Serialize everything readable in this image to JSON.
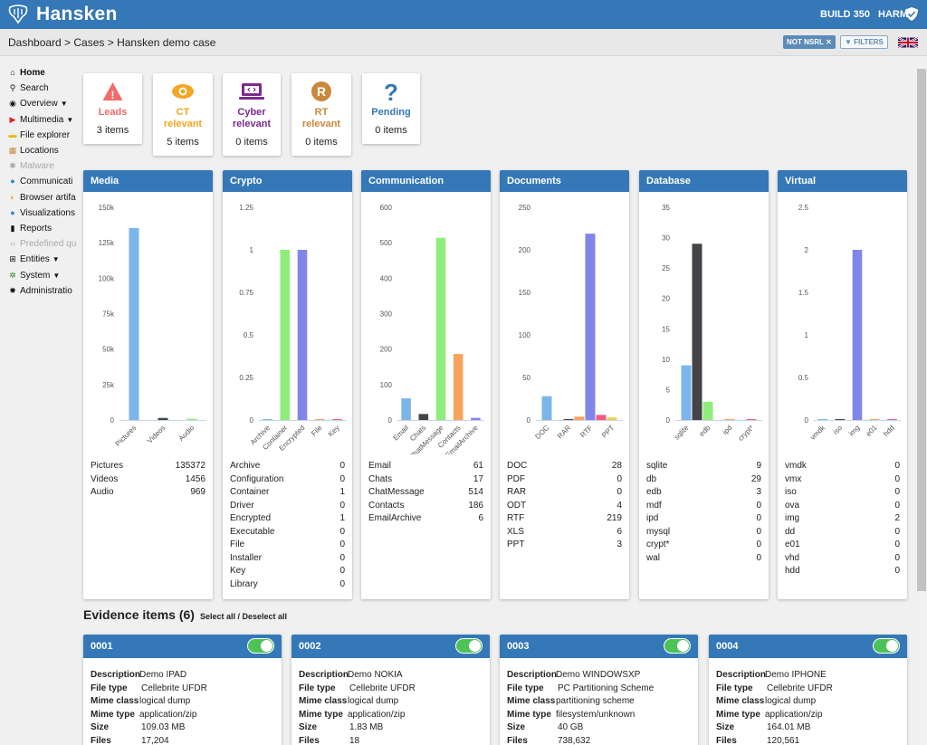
{
  "app": {
    "title": "Hansken",
    "build": "BUILD 350",
    "user": "HARM"
  },
  "breadcrumb": "Dashboard > Cases > Hansken demo case",
  "filter_chip": "NOT NSRL",
  "filters_label": "FILTERS",
  "sidebar": [
    {
      "label": "Home",
      "icon": "home-icon",
      "bold": true,
      "dim": false,
      "chevron": false
    },
    {
      "label": "Search",
      "icon": "search-icon",
      "bold": false,
      "dim": false,
      "chevron": false
    },
    {
      "label": "Overview",
      "icon": "eye-icon",
      "bold": false,
      "dim": false,
      "chevron": true
    },
    {
      "label": "Multimedia",
      "icon": "youtube-icon",
      "bold": false,
      "dim": false,
      "chevron": true
    },
    {
      "label": "File explorer",
      "icon": "folder-icon",
      "bold": false,
      "dim": false,
      "chevron": false
    },
    {
      "label": "Locations",
      "icon": "map-icon",
      "bold": false,
      "dim": false,
      "chevron": false
    },
    {
      "label": "Malware",
      "icon": "bug-icon",
      "bold": false,
      "dim": true,
      "chevron": false
    },
    {
      "label": "Communicati",
      "icon": "globe-icon",
      "bold": false,
      "dim": false,
      "chevron": false
    },
    {
      "label": "Browser artifa",
      "icon": "browser-icon",
      "bold": false,
      "dim": false,
      "chevron": false
    },
    {
      "label": "Visualizations",
      "icon": "globe-icon",
      "bold": false,
      "dim": false,
      "chevron": false
    },
    {
      "label": "Reports",
      "icon": "file-icon",
      "bold": false,
      "dim": false,
      "chevron": false
    },
    {
      "label": "Predefined qu",
      "icon": "code-icon",
      "bold": false,
      "dim": true,
      "chevron": false
    },
    {
      "label": "Entities",
      "icon": "sitemap-icon",
      "bold": false,
      "dim": false,
      "chevron": true
    },
    {
      "label": "System",
      "icon": "cogs-icon",
      "bold": false,
      "dim": false,
      "chevron": true
    },
    {
      "label": "Administratio",
      "icon": "cog-icon",
      "bold": false,
      "dim": false,
      "chevron": false
    }
  ],
  "cards": [
    {
      "title": [
        "Leads"
      ],
      "count": "3 items",
      "color": "#f26b6b",
      "icon": "warning-icon"
    },
    {
      "title": [
        "CT",
        "relevant"
      ],
      "count": "5 items",
      "color": "#f5a623",
      "icon": "eye-icon"
    },
    {
      "title": [
        "Cyber",
        "relevant"
      ],
      "count": "0 items",
      "color": "#7b2a8f",
      "icon": "laptop-code-icon"
    },
    {
      "title": [
        "RT",
        "relevant"
      ],
      "count": "0 items",
      "color": "#c8893a",
      "icon": "r-circle-icon"
    },
    {
      "title": [
        "Pending"
      ],
      "count": "0 items",
      "color": "#3478b7",
      "icon": "question-icon"
    }
  ],
  "chart_data": [
    {
      "type": "bar",
      "title": "Media",
      "categories": [
        "Pictures",
        "Videos",
        "Audio"
      ],
      "values": [
        135372,
        1456,
        969
      ],
      "ylim": [
        0,
        150000
      ],
      "yticks": [
        "150k",
        "125k",
        "100k",
        "75k",
        "50k",
        "25k",
        "0"
      ],
      "colors": [
        "#7cb5ec",
        "#434348",
        "#90ed7d"
      ],
      "stats": [
        [
          "Pictures",
          "135372"
        ],
        [
          "Videos",
          "1456"
        ],
        [
          "Audio",
          "969"
        ]
      ]
    },
    {
      "type": "bar",
      "title": "Crypto",
      "categories": [
        "Archive",
        "Container",
        "Encrypted",
        "File",
        "Key"
      ],
      "values": [
        0,
        1,
        1,
        0,
        0
      ],
      "ylim": [
        0,
        1.25
      ],
      "yticks": [
        "1.25",
        "1",
        "0.75",
        "0.5",
        "0.25",
        "0"
      ],
      "colors": [
        "#7cb5ec",
        "#90ed7d",
        "#8085e9",
        "#f7a35c",
        "#f15c80"
      ],
      "stats": [
        [
          "Archive",
          "0"
        ],
        [
          "Configuration",
          "0"
        ],
        [
          "Container",
          "1"
        ],
        [
          "Driver",
          "0"
        ],
        [
          "Encrypted",
          "1"
        ],
        [
          "Executable",
          "0"
        ],
        [
          "File",
          "0"
        ],
        [
          "Installer",
          "0"
        ],
        [
          "Key",
          "0"
        ],
        [
          "Library",
          "0"
        ]
      ]
    },
    {
      "type": "bar",
      "title": "Communication",
      "categories": [
        "Email",
        "Chats",
        "ChatMessage",
        "Contacts",
        "EmailArchive"
      ],
      "values": [
        61,
        17,
        514,
        186,
        6
      ],
      "ylim": [
        0,
        600
      ],
      "yticks": [
        "600",
        "500",
        "400",
        "300",
        "200",
        "100",
        "0"
      ],
      "colors": [
        "#7cb5ec",
        "#434348",
        "#90ed7d",
        "#f7a35c",
        "#8085e9"
      ],
      "stats": [
        [
          "Email",
          "61"
        ],
        [
          "Chats",
          "17"
        ],
        [
          "ChatMessage",
          "514"
        ],
        [
          "Contacts",
          "186"
        ],
        [
          "EmailArchive",
          "6"
        ]
      ]
    },
    {
      "type": "bar",
      "title": "Documents",
      "categories": [
        "DOC",
        "RAR",
        "RTF",
        "PPT"
      ],
      "values": [
        28,
        0,
        219,
        3
      ],
      "ylim": [
        0,
        250
      ],
      "yticks": [
        "250",
        "200",
        "150",
        "100",
        "50",
        "0"
      ],
      "colors": [
        "#7cb5ec",
        "#434348",
        "#8085e9",
        "#e4d354"
      ],
      "extra_bars": [
        {
          "slot": 1.5,
          "value": 4,
          "color": "#f7a35c"
        },
        {
          "slot": 2.5,
          "value": 6,
          "color": "#f15c80"
        }
      ],
      "stats": [
        [
          "DOC",
          "28"
        ],
        [
          "PDF",
          "0"
        ],
        [
          "RAR",
          "0"
        ],
        [
          "ODT",
          "4"
        ],
        [
          "RTF",
          "219"
        ],
        [
          "XLS",
          "6"
        ],
        [
          "PPT",
          "3"
        ]
      ]
    },
    {
      "type": "bar",
      "title": "Database",
      "categories": [
        "sqlite",
        "edb",
        "ipd",
        "crypt*"
      ],
      "values": [
        9,
        3,
        0,
        0
      ],
      "ylim": [
        0,
        35
      ],
      "yticks": [
        "35",
        "30",
        "25",
        "20",
        "15",
        "10",
        "5",
        "0"
      ],
      "colors": [
        "#7cb5ec",
        "#90ed7d",
        "#f7a35c",
        "#f15c80"
      ],
      "extra_bars": [
        {
          "slot": 0.5,
          "value": 29,
          "color": "#434348"
        }
      ],
      "stats": [
        [
          "sqlite",
          "9"
        ],
        [
          "db",
          "29"
        ],
        [
          "edb",
          "3"
        ],
        [
          "mdf",
          "0"
        ],
        [
          "ipd",
          "0"
        ],
        [
          "mysql",
          "0"
        ],
        [
          "crypt*",
          "0"
        ],
        [
          "wal",
          "0"
        ]
      ]
    },
    {
      "type": "bar",
      "title": "Virtual",
      "categories": [
        "vmdk",
        "iso",
        "img",
        "e01",
        "hdd"
      ],
      "values": [
        0,
        0,
        2,
        0,
        0
      ],
      "ylim": [
        0,
        2.5
      ],
      "yticks": [
        "2.5",
        "2",
        "1.5",
        "1",
        "0.5",
        "0"
      ],
      "colors": [
        "#7cb5ec",
        "#434348",
        "#8085e9",
        "#f7a35c",
        "#f15c80"
      ],
      "stats": [
        [
          "vmdk",
          "0"
        ],
        [
          "vmx",
          "0"
        ],
        [
          "iso",
          "0"
        ],
        [
          "ova",
          "0"
        ],
        [
          "img",
          "2"
        ],
        [
          "dd",
          "0"
        ],
        [
          "e01",
          "0"
        ],
        [
          "vhd",
          "0"
        ],
        [
          "hdd",
          "0"
        ]
      ]
    }
  ],
  "evidence": {
    "title": "Evidence items (6)",
    "select_all": "Select all",
    "sep": " / ",
    "deselect_all": "Deselect all",
    "labels": [
      "Description",
      "File type",
      "Mime class",
      "Mime type",
      "Size",
      "Files"
    ],
    "items": [
      {
        "id": "0001",
        "values": [
          "Demo IPAD",
          "Cellebrite UFDR",
          "logical dump",
          "application/zip",
          "109.03 MB",
          "17,204"
        ]
      },
      {
        "id": "0002",
        "values": [
          "Demo NOKIA",
          "Cellebrite UFDR",
          "logical dump",
          "application/zip",
          "1.83 MB",
          "18"
        ]
      },
      {
        "id": "0003",
        "values": [
          "Demo WINDOWSXP",
          "PC Partitioning Scheme",
          "partitioning scheme",
          "filesystem/unknown",
          "40 GB",
          "738,632"
        ]
      },
      {
        "id": "0004",
        "values": [
          "Demo IPHONE",
          "Cellebrite UFDR",
          "logical dump",
          "application/zip",
          "164.01 MB",
          "120,561"
        ]
      }
    ]
  }
}
